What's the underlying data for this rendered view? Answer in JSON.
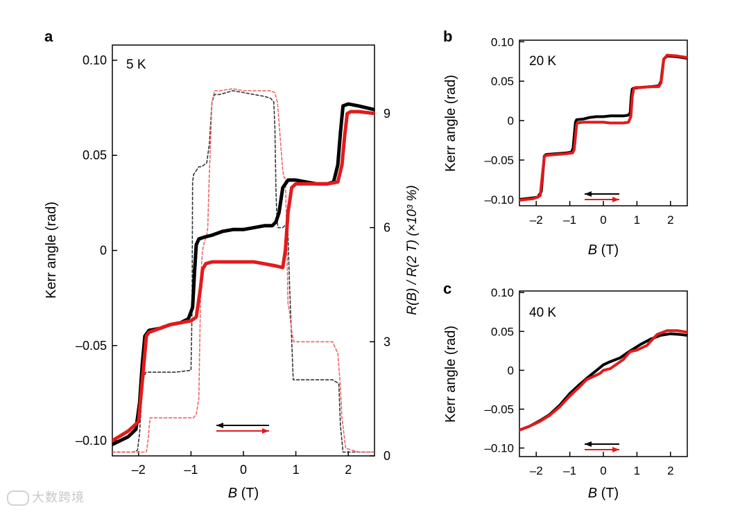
{
  "figure": {
    "watermark": "大数跨境"
  },
  "chart_data": [
    {
      "type": "line",
      "panel_label": "a",
      "temperature_label": "5 K",
      "xlabel_var": "B",
      "xlabel_unit": " (T)",
      "ylabel": "Kerr angle (rad)",
      "y2label": "R(B) / R(2 T) (×10³ %)",
      "xlim": [
        -2.5,
        2.5
      ],
      "ylim": [
        -0.108,
        0.108
      ],
      "y2lim": [
        0,
        10.8
      ],
      "xticks": [
        -2,
        -1,
        0,
        1,
        2
      ],
      "yticks": [
        -0.1,
        -0.05,
        0,
        0.05,
        0.1
      ],
      "ytick_labels": [
        "–0.10",
        "–0.05",
        "0",
        "0.05",
        "0.10"
      ],
      "y2ticks": [
        0,
        3,
        6,
        9
      ],
      "y2tick_labels": [
        "0",
        "3",
        "6",
        "9"
      ],
      "series": [
        {
          "name": "Kerr sweep down (black)",
          "axis": "left",
          "style": "thick",
          "color": "#000000",
          "x": [
            -2.5,
            -2.2,
            -2.05,
            -1.98,
            -1.93,
            -1.88,
            -1.8,
            -1.6,
            -1.4,
            -1.2,
            -1.05,
            -0.97,
            -0.93,
            -0.9,
            -0.85,
            -0.75,
            -0.6,
            -0.4,
            -0.2,
            0,
            0.2,
            0.4,
            0.55,
            0.62,
            0.68,
            0.75,
            0.85,
            1.0,
            1.2,
            1.4,
            1.6,
            1.72,
            1.8,
            1.85,
            1.9,
            2.0,
            2.2,
            2.5
          ],
          "y": [
            -0.102,
            -0.098,
            -0.094,
            -0.08,
            -0.06,
            -0.045,
            -0.042,
            -0.041,
            -0.039,
            -0.038,
            -0.036,
            -0.03,
            -0.01,
            0.003,
            0.006,
            0.007,
            0.008,
            0.01,
            0.011,
            0.011,
            0.012,
            0.013,
            0.013,
            0.015,
            0.02,
            0.033,
            0.037,
            0.037,
            0.036,
            0.035,
            0.035,
            0.036,
            0.045,
            0.062,
            0.076,
            0.077,
            0.076,
            0.074
          ]
        },
        {
          "name": "Kerr sweep up (red)",
          "axis": "left",
          "style": "thick",
          "color": "#e31a1c",
          "x": [
            -2.5,
            -2.2,
            -2.0,
            -1.95,
            -1.9,
            -1.85,
            -1.8,
            -1.6,
            -1.4,
            -1.2,
            -1.0,
            -0.9,
            -0.82,
            -0.78,
            -0.72,
            -0.6,
            -0.4,
            -0.2,
            0,
            0.2,
            0.4,
            0.6,
            0.75,
            0.8,
            0.85,
            0.92,
            1.0,
            1.2,
            1.4,
            1.6,
            1.8,
            1.88,
            1.93,
            1.98,
            2.05,
            2.2,
            2.5
          ],
          "y": [
            -0.1,
            -0.095,
            -0.09,
            -0.075,
            -0.06,
            -0.045,
            -0.043,
            -0.041,
            -0.039,
            -0.038,
            -0.037,
            -0.035,
            -0.02,
            -0.01,
            -0.007,
            -0.006,
            -0.006,
            -0.006,
            -0.006,
            -0.006,
            -0.007,
            -0.008,
            -0.009,
            0,
            0.02,
            0.033,
            0.035,
            0.035,
            0.035,
            0.035,
            0.036,
            0.045,
            0.06,
            0.072,
            0.073,
            0.073,
            0.072
          ]
        },
        {
          "name": "R(B)/R(2T) sweep down (black dashed)",
          "axis": "right",
          "style": "dashed",
          "color": "#333333",
          "x": [
            -2.5,
            -2.1,
            -2.02,
            -1.98,
            -1.92,
            -1.86,
            -1.6,
            -1.3,
            -1.0,
            -0.98,
            -0.97,
            -0.95,
            -0.9,
            -0.85,
            -0.8,
            -0.7,
            -0.65,
            -0.6,
            -0.55,
            -0.45,
            -0.2,
            0,
            0.2,
            0.4,
            0.52,
            0.58,
            0.6,
            0.62,
            0.64,
            0.66,
            0.75,
            0.82,
            0.85,
            0.88,
            0.95,
            1.2,
            1.5,
            1.7,
            1.82,
            1.85,
            1.9,
            2.2,
            2.5
          ],
          "y": [
            0.1,
            0.1,
            0.15,
            0.6,
            2.0,
            2.2,
            2.2,
            2.2,
            2.25,
            3.8,
            7.2,
            7.4,
            7.5,
            7.6,
            7.6,
            7.7,
            8.2,
            9.3,
            9.5,
            9.5,
            9.6,
            9.55,
            9.5,
            9.45,
            9.4,
            9.3,
            8.6,
            7.0,
            6.2,
            6.0,
            6.0,
            6.1,
            5.8,
            4.5,
            2.0,
            2.0,
            2.0,
            2.0,
            1.9,
            0.8,
            0.1,
            0.1,
            0.1
          ]
        },
        {
          "name": "R(B)/R(2T) sweep up (red dashed)",
          "axis": "right",
          "style": "dashed",
          "color": "#f06464",
          "x": [
            -2.5,
            -2.0,
            -1.9,
            -1.85,
            -1.82,
            -1.78,
            -1.5,
            -1.2,
            -0.95,
            -0.9,
            -0.85,
            -0.82,
            -0.8,
            -0.78,
            -0.75,
            -0.7,
            -0.68,
            -0.66,
            -0.62,
            -0.6,
            -0.55,
            -0.45,
            -0.2,
            0,
            0.2,
            0.4,
            0.5,
            0.6,
            0.65,
            0.75,
            0.78,
            0.8,
            0.82,
            0.85,
            0.88,
            0.9,
            0.93,
            0.96,
            1.2,
            1.5,
            1.7,
            1.8,
            1.85,
            1.88,
            1.95,
            2.2,
            2.5
          ],
          "y": [
            0.1,
            0.1,
            0.1,
            0.1,
            0.4,
            1.0,
            1.0,
            1.0,
            1.0,
            1.1,
            1.5,
            4.0,
            5.0,
            5.4,
            5.6,
            5.8,
            6.0,
            7.0,
            8.5,
            9.3,
            9.6,
            9.6,
            9.65,
            9.6,
            9.6,
            9.6,
            9.6,
            9.55,
            9.3,
            7.5,
            7.3,
            7.3,
            6.2,
            4.0,
            3.8,
            3.5,
            3.2,
            3.0,
            3.0,
            3.0,
            3.0,
            2.7,
            1.8,
            1.0,
            0.2,
            0.1,
            0.1
          ]
        }
      ],
      "legend": [
        {
          "direction": "left",
          "color": "#000000"
        },
        {
          "direction": "right",
          "color": "#e31a1c"
        }
      ]
    },
    {
      "type": "line",
      "panel_label": "b",
      "temperature_label": "20 K",
      "xlabel_var": "B",
      "xlabel_unit": " (T)",
      "ylabel": "Kerr angle (rad)",
      "xlim": [
        -2.5,
        2.5
      ],
      "ylim": [
        -0.108,
        0.102
      ],
      "xticks": [
        -2,
        -1,
        0,
        1,
        2
      ],
      "yticks": [
        -0.1,
        -0.05,
        0,
        0.05,
        0.1
      ],
      "ytick_labels": [
        "–0.10",
        "–0.05",
        "0",
        "0.05",
        "0.10"
      ],
      "series": [
        {
          "name": "Kerr sweep down (black)",
          "style": "thick",
          "color": "#000000",
          "x": [
            -2.5,
            -2.1,
            -1.95,
            -1.85,
            -1.8,
            -1.76,
            -1.7,
            -1.4,
            -1.1,
            -0.95,
            -0.9,
            -0.87,
            -0.83,
            -0.8,
            -0.6,
            -0.4,
            -0.2,
            0,
            0.2,
            0.4,
            0.6,
            0.75,
            0.8,
            0.83,
            0.86,
            0.9,
            1.1,
            1.4,
            1.65,
            1.72,
            1.76,
            1.8,
            1.9,
            2.2,
            2.5
          ],
          "y": [
            -0.1,
            -0.098,
            -0.097,
            -0.09,
            -0.065,
            -0.045,
            -0.043,
            -0.042,
            -0.041,
            -0.04,
            -0.035,
            -0.02,
            -0.002,
            0.001,
            0.002,
            0.004,
            0.005,
            0.005,
            0.006,
            0.006,
            0.006,
            0.007,
            0.01,
            0.03,
            0.04,
            0.041,
            0.042,
            0.043,
            0.044,
            0.05,
            0.065,
            0.078,
            0.082,
            0.081,
            0.079
          ]
        },
        {
          "name": "Kerr sweep up (red)",
          "style": "thick",
          "color": "#e31a1c",
          "x": [
            -2.5,
            -2.1,
            -1.95,
            -1.88,
            -1.82,
            -1.76,
            -1.7,
            -1.4,
            -1.1,
            -0.92,
            -0.87,
            -0.83,
            -0.8,
            -0.78,
            -0.6,
            -0.4,
            -0.2,
            0,
            0.2,
            0.4,
            0.6,
            0.75,
            0.82,
            0.86,
            0.9,
            0.95,
            1.1,
            1.4,
            1.65,
            1.72,
            1.76,
            1.8,
            1.9,
            2.2,
            2.5
          ],
          "y": [
            -0.101,
            -0.099,
            -0.097,
            -0.095,
            -0.07,
            -0.046,
            -0.044,
            -0.043,
            -0.042,
            -0.041,
            -0.037,
            -0.02,
            -0.006,
            -0.003,
            -0.002,
            -0.002,
            -0.002,
            -0.002,
            -0.003,
            -0.003,
            -0.003,
            -0.002,
            0.005,
            0.03,
            0.04,
            0.042,
            0.042,
            0.043,
            0.043,
            0.048,
            0.062,
            0.078,
            0.083,
            0.082,
            0.08
          ]
        }
      ],
      "legend": [
        {
          "direction": "left",
          "color": "#000000"
        },
        {
          "direction": "right",
          "color": "#e31a1c"
        }
      ]
    },
    {
      "type": "line",
      "panel_label": "c",
      "temperature_label": "40 K",
      "xlabel_var": "B",
      "xlabel_unit": " (T)",
      "ylabel": "Kerr angle (rad)",
      "xlim": [
        -2.5,
        2.5
      ],
      "ylim": [
        -0.111,
        0.102
      ],
      "xticks": [
        -2,
        -1,
        0,
        1,
        2
      ],
      "yticks": [
        -0.1,
        -0.05,
        0,
        0.05,
        0.1
      ],
      "ytick_labels": [
        "–0.10",
        "–0.05",
        "0",
        "0.05",
        "0.10"
      ],
      "series": [
        {
          "name": "Kerr sweep down (black)",
          "style": "thick",
          "color": "#000000",
          "x": [
            -2.5,
            -2.2,
            -1.9,
            -1.6,
            -1.3,
            -1.0,
            -0.7,
            -0.4,
            -0.2,
            0,
            0.2,
            0.5,
            0.8,
            1.1,
            1.4,
            1.7,
            2.0,
            2.3,
            2.5
          ],
          "y": [
            -0.077,
            -0.072,
            -0.065,
            -0.057,
            -0.045,
            -0.03,
            -0.018,
            -0.007,
            0.0,
            0.007,
            0.011,
            0.016,
            0.025,
            0.033,
            0.04,
            0.045,
            0.047,
            0.046,
            0.045
          ]
        },
        {
          "name": "Kerr sweep up (red)",
          "style": "thick",
          "color": "#e31a1c",
          "x": [
            -2.5,
            -2.2,
            -1.9,
            -1.6,
            -1.3,
            -1.0,
            -0.7,
            -0.5,
            -0.3,
            -0.1,
            0.0,
            0.2,
            0.4,
            0.6,
            0.8,
            1.0,
            1.3,
            1.6,
            1.9,
            2.2,
            2.5
          ],
          "y": [
            -0.077,
            -0.072,
            -0.066,
            -0.058,
            -0.047,
            -0.033,
            -0.021,
            -0.012,
            -0.008,
            -0.004,
            0.0,
            0.002,
            0.008,
            0.014,
            0.024,
            0.026,
            0.032,
            0.046,
            0.051,
            0.051,
            0.049
          ]
        }
      ],
      "legend": [
        {
          "direction": "left",
          "color": "#000000"
        },
        {
          "direction": "right",
          "color": "#e31a1c"
        }
      ]
    }
  ]
}
